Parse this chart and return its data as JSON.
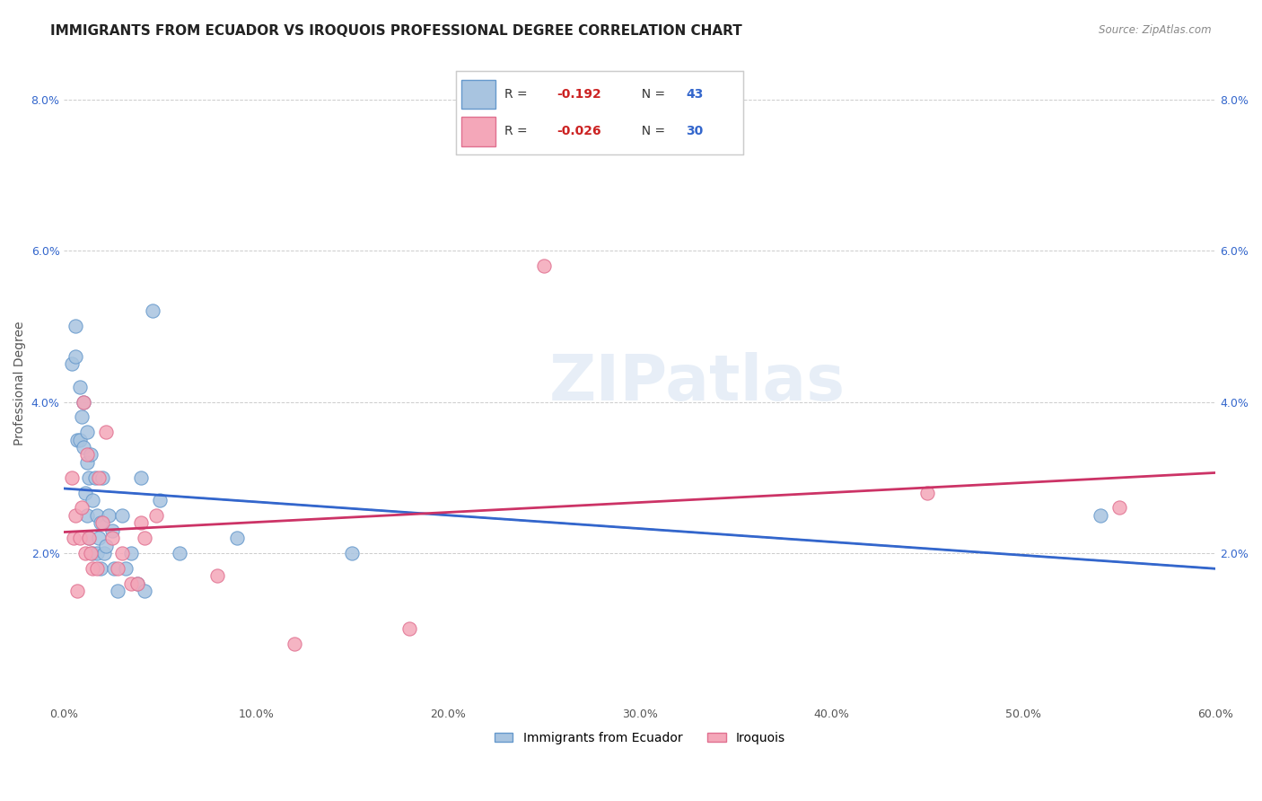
{
  "title": "IMMIGRANTS FROM ECUADOR VS IROQUOIS PROFESSIONAL DEGREE CORRELATION CHART",
  "source": "Source: ZipAtlas.com",
  "xlabel": "",
  "ylabel": "Professional Degree",
  "xlim": [
    0.0,
    0.6
  ],
  "ylim": [
    0.0,
    0.085
  ],
  "xticks": [
    0.0,
    0.1,
    0.2,
    0.3,
    0.4,
    0.5,
    0.6
  ],
  "xticklabels": [
    "0.0%",
    "10.0%",
    "20.0%",
    "30.0%",
    "40.0%",
    "50.0%",
    "60.0%"
  ],
  "yticks": [
    0.0,
    0.02,
    0.04,
    0.06,
    0.08
  ],
  "yticklabels": [
    "",
    "2.0%",
    "4.0%",
    "6.0%",
    "8.0%"
  ],
  "ecuador_color": "#a8c4e0",
  "iroquois_color": "#f4a7b9",
  "ecuador_edge": "#6699cc",
  "iroquois_edge": "#e07090",
  "trend_ecuador_color": "#3366cc",
  "trend_iroquois_color": "#cc3366",
  "R_ecuador": -0.192,
  "N_ecuador": 43,
  "R_iroquois": -0.026,
  "N_iroquois": 30,
  "watermark": "ZIPatlas",
  "ecuador_x": [
    0.004,
    0.006,
    0.006,
    0.007,
    0.008,
    0.008,
    0.009,
    0.01,
    0.01,
    0.011,
    0.012,
    0.012,
    0.012,
    0.013,
    0.013,
    0.014,
    0.015,
    0.015,
    0.016,
    0.017,
    0.017,
    0.018,
    0.019,
    0.019,
    0.02,
    0.021,
    0.022,
    0.023,
    0.025,
    0.026,
    0.028,
    0.03,
    0.032,
    0.035,
    0.038,
    0.04,
    0.042,
    0.046,
    0.05,
    0.06,
    0.09,
    0.15,
    0.54
  ],
  "ecuador_y": [
    0.045,
    0.05,
    0.046,
    0.035,
    0.035,
    0.042,
    0.038,
    0.04,
    0.034,
    0.028,
    0.032,
    0.036,
    0.025,
    0.03,
    0.022,
    0.033,
    0.027,
    0.02,
    0.03,
    0.025,
    0.02,
    0.022,
    0.024,
    0.018,
    0.03,
    0.02,
    0.021,
    0.025,
    0.023,
    0.018,
    0.015,
    0.025,
    0.018,
    0.02,
    0.016,
    0.03,
    0.015,
    0.052,
    0.027,
    0.02,
    0.022,
    0.02,
    0.025
  ],
  "iroquois_x": [
    0.004,
    0.005,
    0.006,
    0.007,
    0.008,
    0.009,
    0.01,
    0.011,
    0.012,
    0.013,
    0.014,
    0.015,
    0.017,
    0.018,
    0.02,
    0.022,
    0.025,
    0.028,
    0.03,
    0.035,
    0.038,
    0.04,
    0.042,
    0.048,
    0.08,
    0.12,
    0.18,
    0.25,
    0.45,
    0.55
  ],
  "iroquois_y": [
    0.03,
    0.022,
    0.025,
    0.015,
    0.022,
    0.026,
    0.04,
    0.02,
    0.033,
    0.022,
    0.02,
    0.018,
    0.018,
    0.03,
    0.024,
    0.036,
    0.022,
    0.018,
    0.02,
    0.016,
    0.016,
    0.024,
    0.022,
    0.025,
    0.017,
    0.008,
    0.01,
    0.058,
    0.028,
    0.026
  ],
  "grid_color": "#cccccc",
  "background_color": "#ffffff",
  "legend_loc": "upper right",
  "title_fontsize": 11,
  "axis_label_fontsize": 10,
  "tick_fontsize": 9
}
